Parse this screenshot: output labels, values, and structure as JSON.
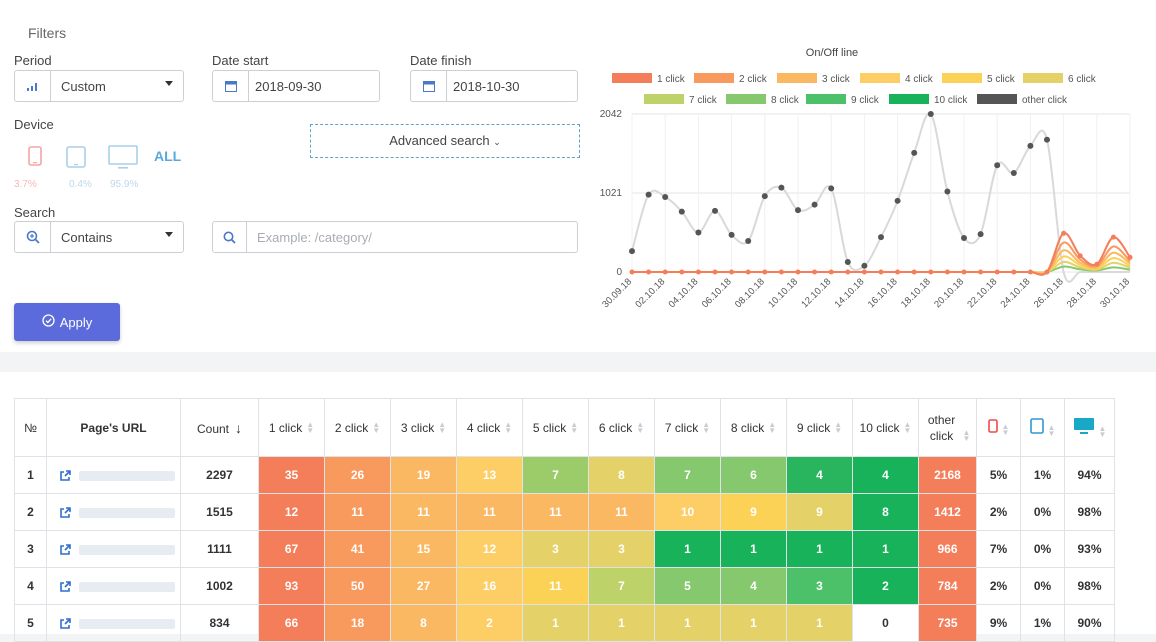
{
  "filters": {
    "title": "Filters",
    "period_label": "Period",
    "period_value": "Custom",
    "date_start_label": "Date start",
    "date_start_value": "2018-09-30",
    "date_finish_label": "Date finish",
    "date_finish_value": "2018-10-30",
    "device_label": "Device",
    "device_all": "ALL",
    "device_mobile_pct": "3.7%",
    "device_tablet_pct": "0.4%",
    "device_desktop_pct": "95.9%",
    "advanced_search": "Advanced search",
    "search_label": "Search",
    "search_mode": "Contains",
    "search_placeholder": "Example: /category/",
    "apply": "Apply"
  },
  "chart_data": {
    "type": "line",
    "title": "On/Off line",
    "yticks": [
      "0",
      "1021",
      "2042"
    ],
    "ylim": [
      0,
      2042
    ],
    "categories": [
      "30.09.18",
      "01.10.18",
      "02.10.18",
      "03.10.18",
      "04.10.18",
      "05.10.18",
      "06.10.18",
      "07.10.18",
      "08.10.18",
      "09.10.18",
      "10.10.18",
      "11.10.18",
      "12.10.18",
      "13.10.18",
      "14.10.18",
      "15.10.18",
      "16.10.18",
      "17.10.18",
      "18.10.18",
      "19.10.18",
      "20.10.18",
      "21.10.18",
      "22.10.18",
      "23.10.18",
      "24.10.18",
      "25.10.18",
      "26.10.18",
      "27.10.18",
      "28.10.18",
      "29.10.18",
      "30.10.18"
    ],
    "xtick_labels": [
      "30.09.18",
      "02.10.18",
      "04.10.18",
      "06.10.18",
      "08.10.18",
      "10.10.18",
      "12.10.18",
      "14.10.18",
      "16.10.18",
      "18.10.18",
      "20.10.18",
      "22.10.18",
      "24.10.18",
      "26.10.18",
      "28.10.18",
      "30.10.18"
    ],
    "legend": [
      {
        "name": "1 click",
        "color": "#f47d5a"
      },
      {
        "name": "2 click",
        "color": "#f89a5e"
      },
      {
        "name": "3 click",
        "color": "#fbb863"
      },
      {
        "name": "4 click",
        "color": "#fdcd66"
      },
      {
        "name": "5 click",
        "color": "#fbd256"
      },
      {
        "name": "6 click",
        "color": "#e4d167"
      },
      {
        "name": "7 click",
        "color": "#bed26a"
      },
      {
        "name": "8 click",
        "color": "#86c86d"
      },
      {
        "name": "9 click",
        "color": "#4cc169"
      },
      {
        "name": "10 click",
        "color": "#18b25a"
      },
      {
        "name": "other click",
        "color": "#555555"
      }
    ],
    "series": [
      {
        "name": "other click",
        "color": "#555555",
        "values": [
          270,
          1000,
          970,
          780,
          510,
          790,
          480,
          400,
          980,
          1090,
          800,
          870,
          1080,
          130,
          80,
          450,
          920,
          1540,
          2042,
          1040,
          440,
          490,
          1380,
          1280,
          1630,
          1710,
          0,
          0,
          0,
          0,
          0
        ]
      },
      {
        "name": "1 click",
        "color": "#f47d5a",
        "values": [
          0,
          0,
          0,
          0,
          0,
          0,
          0,
          0,
          0,
          0,
          0,
          0,
          0,
          0,
          0,
          0,
          0,
          0,
          0,
          0,
          0,
          0,
          0,
          0,
          0,
          0,
          500,
          210,
          100,
          450,
          190
        ]
      },
      {
        "name": "2 click",
        "color": "#f89a5e",
        "values": [
          0,
          0,
          0,
          0,
          0,
          0,
          0,
          0,
          0,
          0,
          0,
          0,
          0,
          0,
          0,
          0,
          0,
          0,
          0,
          0,
          0,
          0,
          0,
          0,
          0,
          0,
          380,
          160,
          80,
          330,
          140
        ]
      },
      {
        "name": "3 click",
        "color": "#fbb863",
        "values": [
          0,
          0,
          0,
          0,
          0,
          0,
          0,
          0,
          0,
          0,
          0,
          0,
          0,
          0,
          0,
          0,
          0,
          0,
          0,
          0,
          0,
          0,
          0,
          0,
          0,
          0,
          280,
          120,
          60,
          250,
          110
        ]
      },
      {
        "name": "5 click",
        "color": "#fbd256",
        "values": [
          0,
          0,
          0,
          0,
          0,
          0,
          0,
          0,
          0,
          0,
          0,
          0,
          0,
          0,
          0,
          0,
          0,
          0,
          0,
          0,
          0,
          0,
          0,
          0,
          0,
          0,
          200,
          90,
          45,
          180,
          80
        ]
      },
      {
        "name": "6 click",
        "color": "#e4d167",
        "values": [
          0,
          0,
          0,
          0,
          0,
          0,
          0,
          0,
          0,
          0,
          0,
          0,
          0,
          0,
          0,
          0,
          0,
          0,
          0,
          0,
          0,
          0,
          0,
          0,
          0,
          0,
          130,
          60,
          30,
          120,
          55
        ]
      },
      {
        "name": "8 click",
        "color": "#86c86d",
        "values": [
          0,
          0,
          0,
          0,
          0,
          0,
          0,
          0,
          0,
          0,
          0,
          0,
          0,
          0,
          0,
          0,
          0,
          0,
          0,
          0,
          0,
          0,
          0,
          0,
          0,
          0,
          70,
          35,
          20,
          60,
          30
        ]
      }
    ]
  },
  "table": {
    "headers": [
      "№",
      "Page's URL",
      "Count",
      "1 click",
      "2 click",
      "3 click",
      "4 click",
      "5 click",
      "6 click",
      "7 click",
      "8 click",
      "9 click",
      "10 click",
      "other click"
    ],
    "rows": [
      {
        "n": "1",
        "count": "2297",
        "clicks": [
          "35",
          "26",
          "19",
          "13",
          "7",
          "8",
          "7",
          "6",
          "4",
          "4",
          "2168"
        ],
        "pcts": [
          "5%",
          "1%",
          "94%"
        ]
      },
      {
        "n": "2",
        "count": "1515",
        "clicks": [
          "12",
          "11",
          "11",
          "11",
          "11",
          "11",
          "10",
          "9",
          "9",
          "8",
          "1412"
        ],
        "pcts": [
          "2%",
          "0%",
          "98%"
        ]
      },
      {
        "n": "3",
        "count": "1111",
        "clicks": [
          "67",
          "41",
          "15",
          "12",
          "3",
          "3",
          "1",
          "1",
          "1",
          "1",
          "966"
        ],
        "pcts": [
          "7%",
          "0%",
          "93%"
        ]
      },
      {
        "n": "4",
        "count": "1002",
        "clicks": [
          "93",
          "50",
          "27",
          "16",
          "11",
          "7",
          "5",
          "4",
          "3",
          "2",
          "784"
        ],
        "pcts": [
          "2%",
          "0%",
          "98%"
        ]
      },
      {
        "n": "5",
        "count": "834",
        "clicks": [
          "66",
          "18",
          "8",
          "2",
          "1",
          "1",
          "1",
          "1",
          "1",
          "0",
          "735"
        ],
        "pcts": [
          "9%",
          "1%",
          "90%"
        ]
      }
    ],
    "colors": [
      [
        "#f47d5a",
        "#f89a5e",
        "#fbb863",
        "#fdcd66",
        "#9ccc6a",
        "#e4d167",
        "#86c86d",
        "#86c86d",
        "#29b45e",
        "#18b25a",
        "#f47d5a"
      ],
      [
        "#f47d5a",
        "#f89a5e",
        "#fbb863",
        "#fbb863",
        "#fbb863",
        "#fbb863",
        "#fdcd66",
        "#fbd256",
        "#e4d167",
        "#18b25a",
        "#f47d5a"
      ],
      [
        "#f47d5a",
        "#f89a5e",
        "#fbb863",
        "#fdcd66",
        "#e4d167",
        "#e4d167",
        "#18b25a",
        "#18b25a",
        "#18b25a",
        "#18b25a",
        "#f47d5a"
      ],
      [
        "#f47d5a",
        "#f89a5e",
        "#fbb863",
        "#fdcd66",
        "#fbd256",
        "#bed26a",
        "#86c86d",
        "#86c86d",
        "#4cc169",
        "#18b25a",
        "#f47d5a"
      ],
      [
        "#f47d5a",
        "#f89a5e",
        "#fbb863",
        "#fdcd66",
        "#e4d167",
        "#e4d167",
        "#e4d167",
        "#e4d167",
        "#e4d167",
        "#ffffff",
        "#f47d5a"
      ]
    ]
  }
}
